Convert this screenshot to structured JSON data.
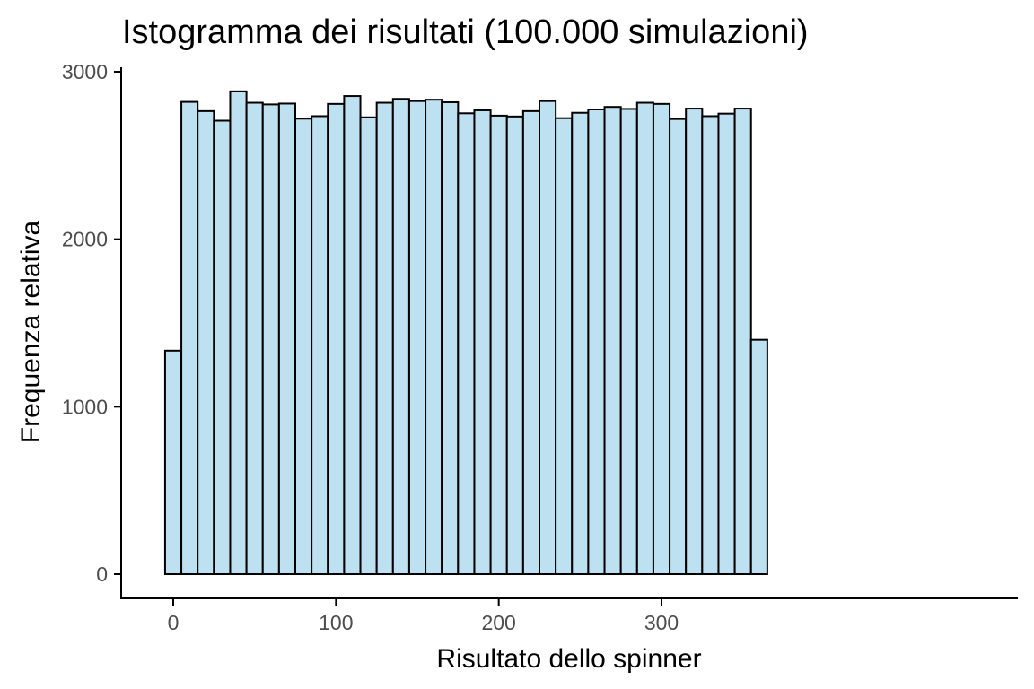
{
  "chart_data": {
    "type": "bar",
    "title": "Istogramma dei risultati (100.000 simulazioni)",
    "xlabel": "Risultato dello spinner",
    "ylabel": "Frequenza relativa",
    "xlim": [
      -10,
      370
    ],
    "ylim": [
      0,
      3000
    ],
    "x_ticks": [
      0,
      100,
      200,
      300
    ],
    "y_ticks": [
      0,
      1000,
      2000,
      3000
    ],
    "bin_width": 10,
    "bin_centers": [
      0,
      10,
      20,
      30,
      40,
      50,
      60,
      70,
      80,
      90,
      100,
      110,
      120,
      130,
      140,
      150,
      160,
      170,
      180,
      190,
      200,
      210,
      220,
      230,
      240,
      250,
      260,
      270,
      280,
      290,
      300,
      310,
      320,
      330,
      340,
      350,
      360
    ],
    "values": [
      1335,
      2820,
      2765,
      2708,
      2883,
      2815,
      2805,
      2810,
      2720,
      2735,
      2808,
      2855,
      2728,
      2815,
      2838,
      2825,
      2833,
      2818,
      2752,
      2770,
      2738,
      2733,
      2765,
      2825,
      2723,
      2755,
      2775,
      2790,
      2778,
      2815,
      2808,
      2718,
      2780,
      2735,
      2750,
      2780,
      1400
    ],
    "grid": false,
    "fill_color": "#bde1f1",
    "edge_color": "#000000"
  }
}
